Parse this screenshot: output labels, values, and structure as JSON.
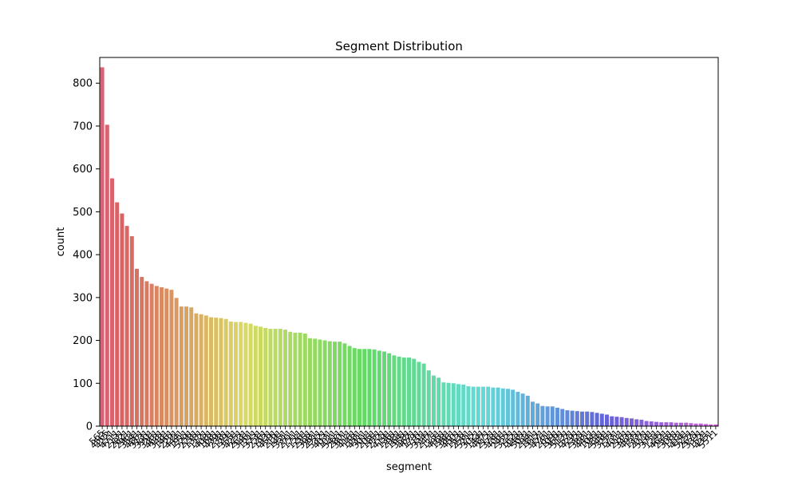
{
  "chart_data": {
    "type": "bar",
    "title": "Segment Distribution",
    "xlabel": "segment",
    "ylabel": "count",
    "ylim": [
      0,
      860
    ],
    "yticks": [
      0,
      100,
      200,
      300,
      400,
      500,
      600,
      700,
      800
    ],
    "grid": false,
    "legend": "none",
    "values": [
      837,
      703,
      578,
      522,
      496,
      467,
      443,
      367,
      348,
      338,
      332,
      327,
      324,
      321,
      318,
      299,
      279,
      279,
      277,
      263,
      261,
      258,
      254,
      253,
      252,
      250,
      244,
      243,
      243,
      241,
      239,
      234,
      232,
      229,
      227,
      227,
      227,
      225,
      220,
      218,
      218,
      216,
      205,
      204,
      202,
      200,
      198,
      197,
      197,
      193,
      187,
      182,
      180,
      180,
      180,
      179,
      176,
      174,
      170,
      165,
      162,
      160,
      160,
      157,
      150,
      146,
      130,
      118,
      113,
      102,
      101,
      100,
      98,
      97,
      93,
      92,
      92,
      92,
      92,
      90,
      90,
      88,
      87,
      85,
      80,
      76,
      71,
      57,
      53,
      47,
      46,
      46,
      43,
      40,
      37,
      36,
      35,
      34,
      34,
      33,
      31,
      29,
      27,
      23,
      22,
      21,
      19,
      18,
      16,
      15,
      12,
      11,
      10,
      9,
      9,
      9,
      8,
      8,
      8,
      7,
      6,
      6,
      5,
      4,
      4
    ],
    "categories": [
      "565",
      "4565",
      "4221",
      "4711",
      "2131",
      "2821",
      "2961",
      "3541",
      "4861",
      "3131",
      "3901",
      "3361",
      "4681",
      "3481",
      "1461",
      "2291",
      "4441",
      "1911",
      "5291",
      "2281",
      "1381",
      "1121",
      "4081",
      "1681",
      "4391",
      "2381",
      "1291",
      "3551",
      "4251",
      "2631",
      "3461",
      "1211",
      "3731",
      "2261",
      "1931",
      "4591",
      "2191",
      "1451",
      "3311",
      "2711",
      "1711",
      "1261",
      "2351",
      "3981",
      "2911",
      "5321",
      "4031",
      "1011",
      "5411",
      "2801",
      "3611",
      "4161",
      "1581",
      "4311",
      "3011",
      "2051",
      "1851",
      "2721",
      "4191",
      "1361",
      "2981",
      "1641",
      "3581",
      "4671",
      "1791",
      "5101",
      "3341",
      "2471",
      "1151",
      "4951",
      "1981",
      "3861",
      "4501",
      "1531",
      "2581",
      "5211",
      "3021",
      "1441",
      "4871",
      "2121",
      "3781",
      "4061",
      "2451",
      "3221",
      "1621",
      "4481",
      "5031",
      "2941",
      "1811",
      "3171",
      "4761",
      "2611",
      "1091",
      "3691",
      "5131",
      "1571",
      "4291",
      "2321",
      "3881",
      "4411",
      "1041",
      "2841",
      "5481",
      "3251",
      "1731",
      "4011",
      "2161",
      "3431",
      "4931",
      "1331",
      "2071",
      "5181",
      "3751",
      "1241",
      "4621",
      "2551",
      "3081",
      "1181",
      "4141",
      "5251",
      "2671",
      "3391",
      "1521",
      "4351",
      "5511"
    ]
  }
}
